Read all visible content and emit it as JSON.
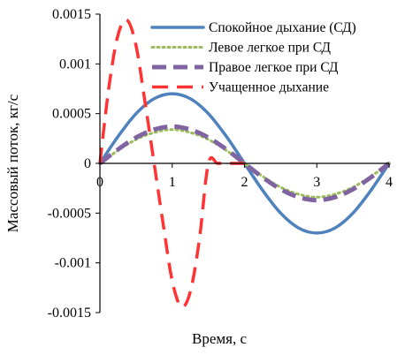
{
  "chart_data": {
    "type": "line",
    "xlabel": "Время, с",
    "ylabel": "Массовый поток, кг/с",
    "xlim": [
      0,
      4
    ],
    "ylim": [
      -0.0015,
      0.0015
    ],
    "x_ticks": [
      "0",
      "1",
      "2",
      "3",
      "4"
    ],
    "y_ticks": [
      "0.0015",
      "0.001",
      "0.0005",
      "0",
      "-0.0005",
      "-0.001",
      "-0.0015"
    ],
    "grid": false,
    "legend_position": "top-right",
    "series": [
      {
        "name": "Спокойное дыхание (СД)",
        "color": "#4f81bd",
        "style": "solid",
        "x": [
          0,
          0.25,
          0.5,
          0.75,
          1,
          1.25,
          1.5,
          1.75,
          2,
          2.25,
          2.5,
          2.75,
          3,
          3.25,
          3.5,
          3.75,
          4
        ],
        "values": [
          0,
          0.00027,
          0.0005,
          0.00065,
          0.0007,
          0.00065,
          0.0005,
          0.00027,
          0,
          -0.00027,
          -0.0005,
          -0.00065,
          -0.0007,
          -0.00065,
          -0.0005,
          -0.00027,
          0
        ]
      },
      {
        "name": "Левое легкое при СД",
        "color": "#9bbb59",
        "style": "dotted",
        "x": [
          0,
          0.25,
          0.5,
          0.75,
          1,
          1.25,
          1.5,
          1.75,
          2,
          2.25,
          2.5,
          2.75,
          3,
          3.25,
          3.5,
          3.75,
          4
        ],
        "values": [
          0,
          0.00013,
          0.00024,
          0.00031,
          0.00034,
          0.00031,
          0.00024,
          0.00013,
          0,
          -0.00013,
          -0.00024,
          -0.00031,
          -0.00034,
          -0.00031,
          -0.00024,
          -0.00013,
          0
        ]
      },
      {
        "name": "Правое легкое при СД",
        "color": "#8064a2",
        "style": "long-dash",
        "x": [
          0,
          0.25,
          0.5,
          0.75,
          1,
          1.25,
          1.5,
          1.75,
          2,
          2.25,
          2.5,
          2.75,
          3,
          3.25,
          3.5,
          3.75,
          4
        ],
        "values": [
          0,
          0.00014,
          0.00026,
          0.00034,
          0.00037,
          0.00034,
          0.00026,
          0.00014,
          0,
          -0.00014,
          -0.00026,
          -0.00034,
          -0.00037,
          -0.00034,
          -0.00026,
          -0.00014,
          0
        ]
      },
      {
        "name": "Учащенное дыхание",
        "color": "#ff3333",
        "style": "dashed",
        "x": [
          0,
          0.125,
          0.25,
          0.375,
          0.5,
          0.625,
          0.75,
          0.875,
          1,
          1.125,
          1.25,
          1.375,
          1.5,
          1.625,
          1.75,
          1.875,
          2
        ],
        "values": [
          0,
          0.00077,
          0.00129,
          0.00144,
          0.00118,
          0.00061,
          0,
          -0.00061,
          -0.00118,
          -0.00144,
          -0.00129,
          -0.00077,
          0,
          0,
          0,
          0,
          0
        ]
      }
    ]
  }
}
